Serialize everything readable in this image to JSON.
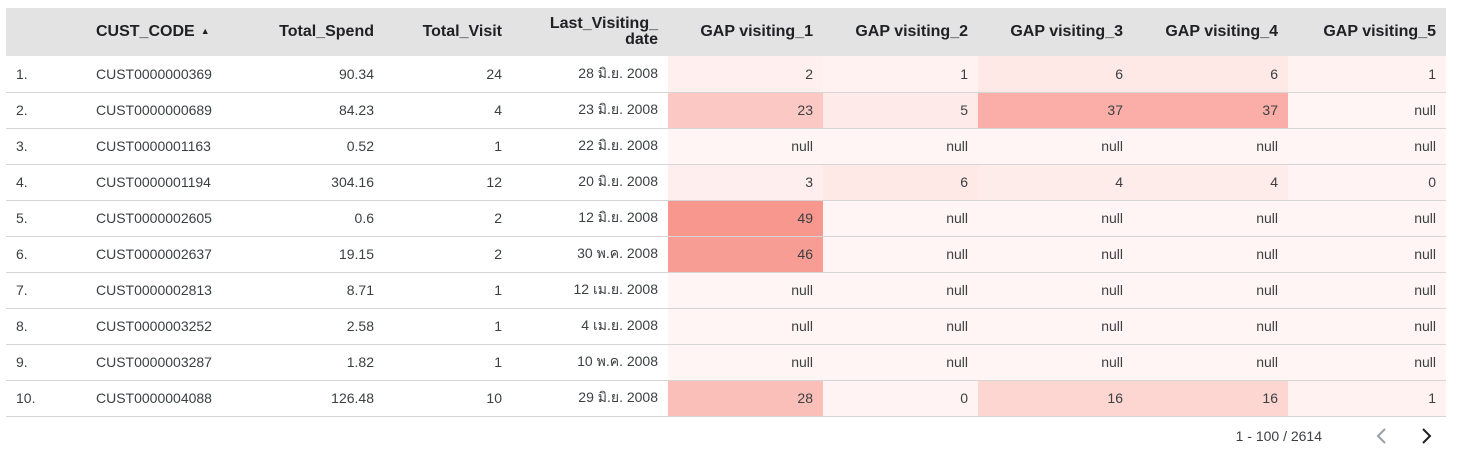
{
  "table": {
    "headers": {
      "idx": "",
      "cust_code": "CUST_CODE",
      "total_spend": "Total_Spend",
      "total_visit": "Total_Visit",
      "last_visiting_date_line1": "Last_Visiting_",
      "last_visiting_date_line2": "date",
      "gap1": "GAP visiting_1",
      "gap2": "GAP visiting_2",
      "gap3": "GAP visiting_3",
      "gap4": "GAP visiting_4",
      "gap5": "GAP visiting_5"
    },
    "sort_icon": "sort-ascending-icon",
    "rows": [
      {
        "idx": "1.",
        "code": "CUST0000000369",
        "spend": "90.34",
        "visit": "24",
        "date": "28 มิ.ย. 2008",
        "gaps": [
          "2",
          "1",
          "6",
          "6",
          "1"
        ]
      },
      {
        "idx": "2.",
        "code": "CUST0000000689",
        "spend": "84.23",
        "visit": "4",
        "date": "23 มิ.ย. 2008",
        "gaps": [
          "23",
          "5",
          "37",
          "37",
          "null"
        ]
      },
      {
        "idx": "3.",
        "code": "CUST0000001163",
        "spend": "0.52",
        "visit": "1",
        "date": "22 มิ.ย. 2008",
        "gaps": [
          "null",
          "null",
          "null",
          "null",
          "null"
        ]
      },
      {
        "idx": "4.",
        "code": "CUST0000001194",
        "spend": "304.16",
        "visit": "12",
        "date": "20 มิ.ย. 2008",
        "gaps": [
          "3",
          "6",
          "4",
          "4",
          "0"
        ]
      },
      {
        "idx": "5.",
        "code": "CUST0000002605",
        "spend": "0.6",
        "visit": "2",
        "date": "12 มิ.ย. 2008",
        "gaps": [
          "49",
          "null",
          "null",
          "null",
          "null"
        ]
      },
      {
        "idx": "6.",
        "code": "CUST0000002637",
        "spend": "19.15",
        "visit": "2",
        "date": "30 พ.ค. 2008",
        "gaps": [
          "46",
          "null",
          "null",
          "null",
          "null"
        ]
      },
      {
        "idx": "7.",
        "code": "CUST0000002813",
        "spend": "8.71",
        "visit": "1",
        "date": "12 เม.ย. 2008",
        "gaps": [
          "null",
          "null",
          "null",
          "null",
          "null"
        ]
      },
      {
        "idx": "8.",
        "code": "CUST0000003252",
        "spend": "2.58",
        "visit": "1",
        "date": "4 เม.ย. 2008",
        "gaps": [
          "null",
          "null",
          "null",
          "null",
          "null"
        ]
      },
      {
        "idx": "9.",
        "code": "CUST0000003287",
        "spend": "1.82",
        "visit": "1",
        "date": "10 พ.ค. 2008",
        "gaps": [
          "null",
          "null",
          "null",
          "null",
          "null"
        ]
      },
      {
        "idx": "10.",
        "code": "CUST0000004088",
        "spend": "126.48",
        "visit": "10",
        "date": "29 มิ.ย. 2008",
        "gaps": [
          "28",
          "0",
          "16",
          "16",
          "1"
        ]
      }
    ]
  },
  "heatmap": {
    "max_value": 49,
    "null_color": "#fff5f4",
    "low_color": "#fff4f3",
    "high_color": "#f8978e"
  },
  "pagination": {
    "range": "1 - 100 / 2614",
    "prev_icon": "chevron-left-icon",
    "next_icon": "chevron-right-icon",
    "prev_color": "#9aa0a6",
    "next_color": "#202124"
  }
}
